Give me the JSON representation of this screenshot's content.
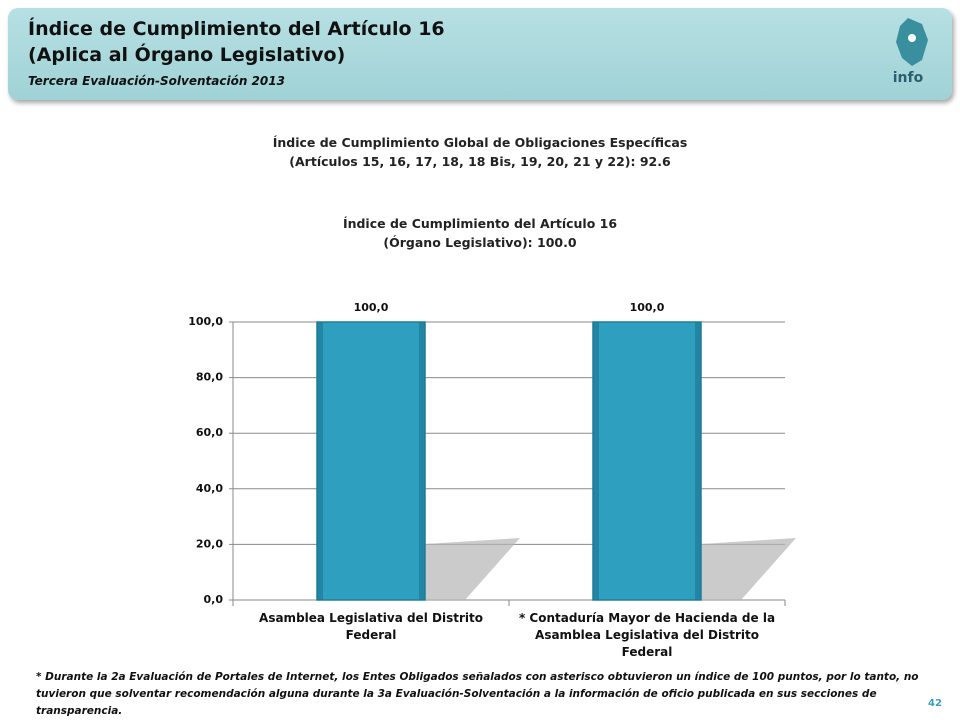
{
  "header": {
    "title_lines": [
      "Índice de Cumplimiento del Artículo 16",
      "(Aplica al Órgano Legislativo)"
    ],
    "subtitle": "Tercera Evaluación-Solventación 2013",
    "logo": "info"
  },
  "global_index": [
    "Índice de Cumplimiento Global de Obligaciones Específicas",
    "(Artículos 15, 16, 17, 18, 18 Bis, 19, 20, 21 y 22): 92.6"
  ],
  "chart_data": {
    "type": "bar",
    "title": [
      "Índice de Cumplimiento del Artículo 16",
      "(Órgano Legislativo): 100.0"
    ],
    "categories": [
      "Asamblea Legislativa del Distrito Federal",
      "* Contaduría Mayor de Hacienda de la Asamblea Legislativa del Distrito Federal"
    ],
    "values": [
      100,
      100
    ],
    "value_labels": [
      "100,0",
      "100,0"
    ],
    "color": "#2e9fbf",
    "ylim": [
      0,
      100
    ],
    "yticks": [
      {
        "value": 0,
        "label": "0,0"
      },
      {
        "value": 20,
        "label": "20,0"
      },
      {
        "value": 40,
        "label": "40,0"
      },
      {
        "value": 60,
        "label": "60,0"
      },
      {
        "value": 80,
        "label": "80,0"
      },
      {
        "value": 100,
        "label": "100,0"
      }
    ],
    "grid": true
  },
  "footnote": "* Durante la 2a Evaluación de Portales de Internet, los Entes Obligados señalados con asterisco obtuvieron un índice de 100 puntos, por lo tanto, no tuvieron que solventar recomendación alguna durante la 3a Evaluación-Solventación a la información de oficio publicada en sus secciones de transparencia.",
  "page_number": "42"
}
